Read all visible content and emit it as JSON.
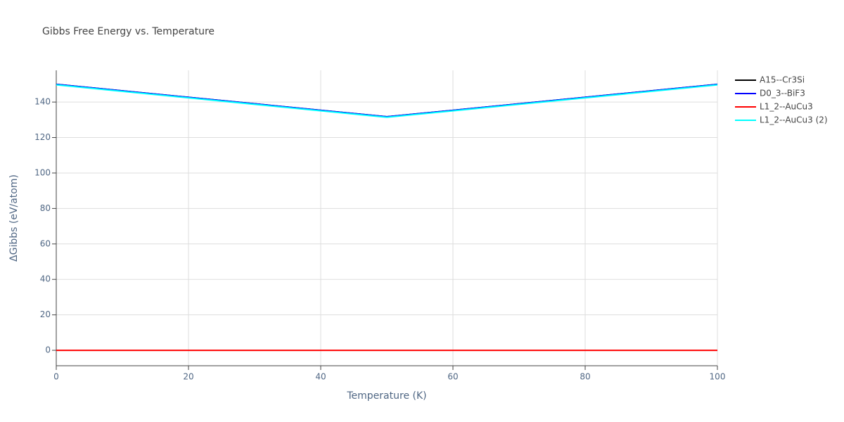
{
  "chart_data": {
    "type": "line",
    "title": "Gibbs Free Energy vs. Temperature",
    "x_label": "Temperature (K)",
    "y_label": "ΔGibbs (eV/atom)",
    "xlim": [
      0,
      100
    ],
    "xticks": [
      0,
      20,
      40,
      60,
      80,
      100
    ],
    "ylim": [
      -8.7,
      157.9
    ],
    "yticks": [
      0,
      20,
      40,
      60,
      80,
      100,
      120,
      140
    ],
    "grid": true,
    "legend": "right",
    "series": [
      {
        "name": "A15--Cr3Si",
        "color": "#000000",
        "x": [
          0,
          50,
          100
        ],
        "values": [
          150,
          131.7,
          150
        ]
      },
      {
        "name": "D0_3--BiF3",
        "color": "#0000ff",
        "x": [
          0,
          50,
          100
        ],
        "values": [
          150,
          131.7,
          150
        ]
      },
      {
        "name": "L1_2--AuCu3",
        "color": "#ff0000",
        "x": [
          0,
          100
        ],
        "values": [
          0,
          0
        ]
      },
      {
        "name": "L1_2--AuCu3 (2)",
        "color": "#00ffff",
        "x": [
          0,
          50,
          100
        ],
        "values": [
          149.7,
          131.4,
          149.7
        ]
      }
    ]
  }
}
